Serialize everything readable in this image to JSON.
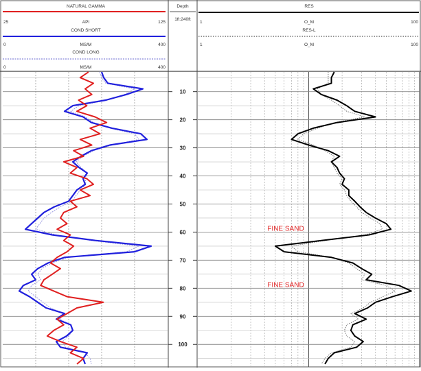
{
  "header": {
    "left_track": {
      "gamma": {
        "name": "NATURAL GAMMA",
        "unit": "API",
        "min": "25",
        "max": "125",
        "color": "#e02020"
      },
      "cond_short": {
        "name": "COND SHORT",
        "unit": "MS/M",
        "min": "0",
        "max": "400",
        "color": "#2020dd"
      },
      "cond_long": {
        "name": "COND LONG",
        "unit": "MS/M",
        "min": "0",
        "max": "400",
        "color": "#9a9ae0"
      }
    },
    "depth_track": {
      "title": "Depth",
      "unit": "1ft:240ft"
    },
    "right_track": {
      "res_short": {
        "name": "RES",
        "unit": "O_M",
        "min": "1",
        "max": "100"
      },
      "res_long": {
        "name": "RES-L",
        "unit": "O_M",
        "min": "1",
        "max": "100"
      }
    }
  },
  "chart_data": {
    "type": "line",
    "depth_axis": {
      "ticks": [
        10,
        20,
        30,
        40,
        50,
        60,
        70,
        80,
        90,
        100
      ],
      "range": [
        3,
        108
      ],
      "unit": "ft"
    },
    "annotations": [
      {
        "text": "FINE SAND",
        "depth": 59.5,
        "color": "#e02020"
      },
      {
        "text": "FINE SAND",
        "depth": 79.5,
        "color": "#e02020"
      }
    ],
    "series": [
      {
        "name": "NATURAL GAMMA",
        "unit": "API",
        "range": [
          25,
          125
        ],
        "color": "#e02020",
        "track": "left",
        "depth": [
          3,
          5,
          7,
          9,
          11,
          13,
          15,
          17,
          19,
          21,
          23,
          25,
          27,
          29,
          31,
          33,
          35,
          37,
          39,
          41,
          43,
          45,
          47,
          49,
          51,
          53,
          55,
          57,
          59,
          61,
          63,
          65,
          67,
          69,
          71,
          73,
          75,
          77,
          79,
          81,
          83,
          85,
          87,
          89,
          91,
          93,
          95,
          97,
          99,
          101,
          103,
          105,
          107
        ],
        "values": [
          77,
          72,
          80,
          75,
          79,
          71,
          76,
          70,
          81,
          88,
          78,
          84,
          72,
          79,
          68,
          74,
          62,
          70,
          66,
          76,
          80,
          72,
          78,
          66,
          70,
          62,
          60,
          64,
          58,
          66,
          62,
          68,
          64,
          58,
          54,
          60,
          55,
          50,
          48,
          56,
          64,
          86,
          70,
          64,
          58,
          62,
          56,
          52,
          60,
          70,
          66,
          74,
          70
        ]
      },
      {
        "name": "COND SHORT",
        "unit": "MS/M",
        "range": [
          0,
          400
        ],
        "color": "#2020dd",
        "track": "left",
        "depth": [
          3,
          5,
          7,
          9,
          11,
          13,
          15,
          17,
          19,
          21,
          23,
          25,
          27,
          29,
          31,
          33,
          35,
          37,
          39,
          41,
          43,
          45,
          47,
          49,
          51,
          53,
          55,
          57,
          59,
          61,
          63,
          65,
          67,
          69,
          71,
          73,
          75,
          77,
          79,
          81,
          83,
          85,
          87,
          89,
          91,
          93,
          95,
          97,
          99,
          101,
          103,
          105,
          107
        ],
        "values": [
          240,
          245,
          255,
          340,
          300,
          250,
          170,
          150,
          195,
          215,
          265,
          335,
          350,
          260,
          215,
          190,
          170,
          185,
          205,
          195,
          200,
          180,
          170,
          160,
          125,
          100,
          85,
          70,
          55,
          120,
          225,
          360,
          320,
          150,
          110,
          85,
          70,
          80,
          50,
          40,
          65,
          85,
          105,
          150,
          130,
          165,
          170,
          155,
          130,
          140,
          205,
          195,
          200
        ]
      },
      {
        "name": "COND LONG",
        "unit": "MS/M",
        "range": [
          0,
          400
        ],
        "color": "#9a9ae0",
        "track": "left",
        "depth": [
          3,
          5,
          7,
          9,
          11,
          13,
          15,
          17,
          19,
          21,
          23,
          25,
          27,
          29,
          31,
          33,
          35,
          37,
          39,
          41,
          43,
          45,
          47,
          49,
          51,
          53,
          55,
          57,
          59,
          61,
          63,
          65,
          67,
          69,
          71,
          73,
          75,
          77,
          79,
          81,
          83,
          85,
          87,
          89,
          91,
          93,
          95,
          97,
          99,
          101,
          103,
          105,
          107
        ],
        "values": [
          235,
          240,
          250,
          320,
          295,
          255,
          185,
          165,
          200,
          220,
          260,
          320,
          330,
          265,
          220,
          195,
          178,
          190,
          205,
          200,
          202,
          188,
          178,
          168,
          140,
          118,
          100,
          90,
          80,
          130,
          215,
          330,
          300,
          160,
          120,
          95,
          85,
          92,
          70,
          62,
          80,
          98,
          115,
          150,
          138,
          165,
          170,
          160,
          145,
          152,
          200,
          212,
          215
        ]
      },
      {
        "name": "RES",
        "unit": "O_M",
        "range": [
          1,
          100
        ],
        "color": "#000000",
        "track": "right",
        "depth": [
          3,
          5,
          7,
          9,
          11,
          13,
          15,
          17,
          19,
          21,
          23,
          25,
          27,
          29,
          31,
          33,
          35,
          37,
          39,
          41,
          43,
          45,
          47,
          49,
          51,
          53,
          55,
          57,
          59,
          61,
          63,
          65,
          67,
          69,
          71,
          73,
          75,
          77,
          79,
          81,
          83,
          85,
          87,
          89,
          91,
          93,
          95,
          97,
          99,
          101,
          103,
          105,
          107
        ],
        "values": [
          17,
          16,
          16,
          11,
          13,
          18,
          22,
          26,
          40,
          18,
          11,
          8,
          7,
          10,
          15,
          19,
          16,
          18,
          19,
          21,
          20,
          23,
          23,
          26,
          29,
          33,
          40,
          50,
          55,
          35,
          13,
          5,
          6,
          16,
          25,
          30,
          37,
          33,
          65,
          84,
          57,
          40,
          34,
          26,
          33,
          25,
          24,
          26,
          31,
          27,
          17,
          15,
          14
        ]
      },
      {
        "name": "RES-L",
        "unit": "O_M",
        "range": [
          1,
          100
        ],
        "color": "#777777",
        "track": "right",
        "depth": [
          3,
          5,
          7,
          9,
          11,
          13,
          15,
          17,
          19,
          21,
          23,
          25,
          27,
          29,
          31,
          33,
          35,
          37,
          39,
          41,
          43,
          45,
          47,
          49,
          51,
          53,
          55,
          57,
          59,
          61,
          63,
          65,
          67,
          69,
          71,
          73,
          75,
          77,
          79,
          81,
          83,
          85,
          87,
          89,
          91,
          93,
          95,
          97,
          99,
          101,
          103,
          105,
          107
        ],
        "values": [
          15,
          15,
          15,
          12,
          13,
          16,
          19,
          22,
          32,
          17,
          12,
          9,
          8,
          11,
          14,
          17,
          16,
          17,
          18,
          20,
          19,
          21,
          22,
          24,
          27,
          30,
          36,
          44,
          46,
          32,
          14,
          7,
          8,
          16,
          23,
          27,
          32,
          30,
          50,
          60,
          47,
          36,
          31,
          24,
          28,
          22,
          21,
          22,
          26,
          24,
          16,
          14,
          13
        ]
      }
    ]
  }
}
